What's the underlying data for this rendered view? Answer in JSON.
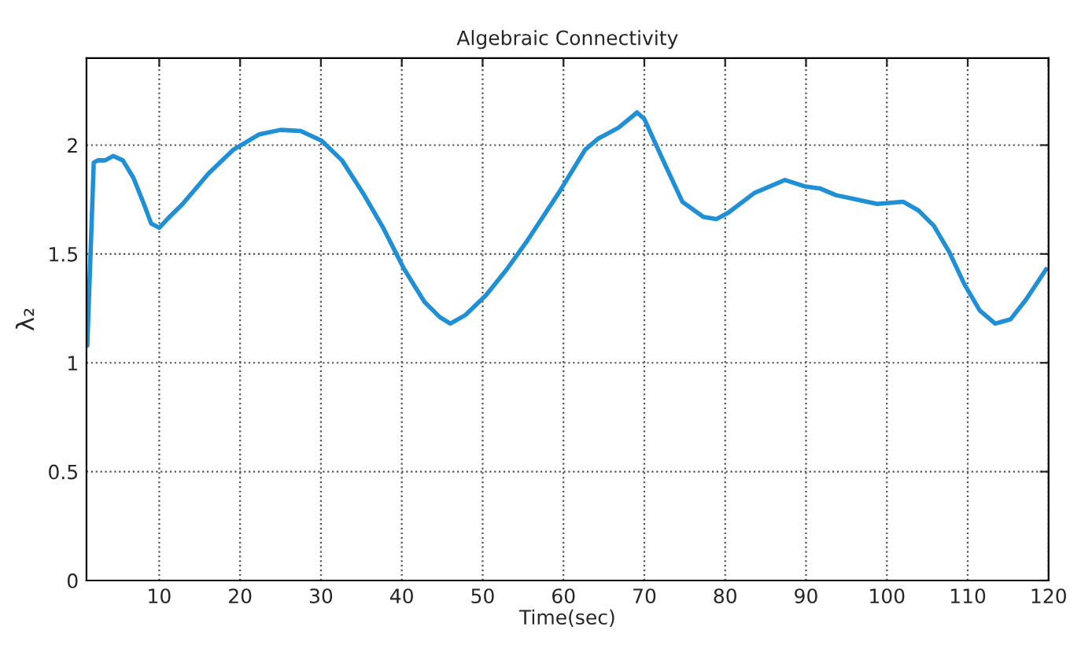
{
  "chart_data": {
    "type": "line",
    "title": "Algebraic Connectivity",
    "xlabel": "Time(sec)",
    "ylabel": "λ₂",
    "x": [
      1.1,
      1.9,
      2.4,
      3.3,
      4.3,
      5.5,
      6.8,
      8.1,
      9.0,
      10,
      11,
      12.9,
      16.1,
      19.2,
      22.4,
      25,
      27.5,
      30.1,
      32.6,
      35.2,
      37.7,
      40.3,
      42.8,
      44.7,
      46,
      47.9,
      50.4,
      53,
      55.5,
      59.4,
      62.7,
      64.3,
      66.8,
      69.1,
      70,
      72.2,
      74.7,
      77.3,
      78.9,
      80.4,
      83.6,
      87.4,
      89.9,
      91.8,
      93.7,
      96.3,
      98.8,
      102,
      103.9,
      105.8,
      107.7,
      109.6,
      111.5,
      113.4,
      115.3,
      117.2,
      119.7
    ],
    "series": [
      {
        "color": "#1f8fd6",
        "values": [
          1.08,
          1.92,
          1.93,
          1.93,
          1.95,
          1.93,
          1.85,
          1.73,
          1.64,
          1.62,
          1.66,
          1.73,
          1.87,
          1.98,
          2.05,
          2.07,
          2.065,
          2.02,
          1.93,
          1.78,
          1.62,
          1.43,
          1.28,
          1.21,
          1.18,
          1.22,
          1.31,
          1.43,
          1.56,
          1.78,
          1.98,
          2.03,
          2.08,
          2.15,
          2.12,
          1.94,
          1.74,
          1.67,
          1.66,
          1.69,
          1.78,
          1.84,
          1.81,
          1.8,
          1.77,
          1.75,
          1.73,
          1.74,
          1.7,
          1.63,
          1.51,
          1.36,
          1.24,
          1.18,
          1.2,
          1.29,
          1.43
        ]
      }
    ],
    "xlim": [
      1,
      120
    ],
    "ylim": [
      0,
      2.4
    ],
    "xticks": [
      10,
      20,
      30,
      40,
      50,
      60,
      70,
      80,
      90,
      100,
      110,
      120
    ],
    "yticks": [
      0,
      0.5,
      1,
      1.5,
      2
    ],
    "grid": true,
    "marker": "none",
    "line_style": "solid"
  }
}
